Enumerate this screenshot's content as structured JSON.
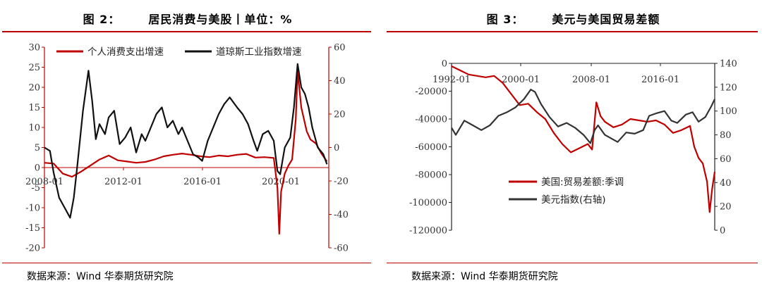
{
  "charts": [
    {
      "figure_label": "图 2：",
      "title": "居民消费与美股丨单位：%",
      "source": "数据来源：Wind 华泰期货研究院"
    },
    {
      "figure_label": "图 3：",
      "title": "美元与美国贸易差额",
      "source": "数据来源：Wind 华泰期货研究院"
    }
  ],
  "colors": {
    "red": "#c00000",
    "black": "#111111",
    "dark": "#333333",
    "rule": "#c00000"
  },
  "chart_data": [
    {
      "type": "line",
      "title": "居民消费与美股丨单位：%",
      "xlabel": "",
      "ylabel": "",
      "x_tick_labels": [
        "2008-01",
        "2012-01",
        "2016-01",
        "2020-01"
      ],
      "xlim": [
        2007.5,
        2023.0
      ],
      "ylim_left": [
        -20,
        30
      ],
      "yticks_left": [
        -20,
        -15,
        -10,
        -5,
        0,
        5,
        10,
        15,
        20,
        25,
        30
      ],
      "ylim_right": [
        -60,
        60
      ],
      "yticks_right": [
        -60,
        -40,
        -20,
        0,
        20,
        40,
        60
      ],
      "legend_position": "top",
      "series": [
        {
          "name": "个人消费支出增速",
          "axis": "left",
          "color": "#c00000",
          "x": [
            2007.5,
            2008.0,
            2008.5,
            2009.0,
            2009.5,
            2010.0,
            2010.5,
            2011.0,
            2011.5,
            2012.0,
            2012.5,
            2013.0,
            2013.5,
            2014.0,
            2014.5,
            2015.0,
            2015.5,
            2016.0,
            2016.5,
            2017.0,
            2017.5,
            2018.0,
            2018.5,
            2019.0,
            2019.5,
            2020.0,
            2020.2,
            2020.3,
            2020.4,
            2020.6,
            2020.8,
            2021.0,
            2021.2,
            2021.3,
            2021.5,
            2021.8,
            2022.0,
            2022.3,
            2022.6,
            2022.9
          ],
          "y": [
            1.2,
            1.0,
            -1.5,
            -2.3,
            -1.0,
            0.5,
            2.0,
            3.0,
            1.8,
            1.5,
            1.2,
            1.4,
            2.0,
            2.8,
            3.2,
            3.5,
            3.2,
            2.8,
            2.6,
            3.0,
            2.8,
            3.2,
            3.4,
            2.5,
            2.6,
            2.4,
            -5,
            -16.5,
            -6,
            -1.5,
            0.5,
            2,
            12,
            24,
            15,
            9,
            7,
            6,
            3.5,
            1.5
          ]
        },
        {
          "name": "道琼斯工业指数增速",
          "axis": "right",
          "color": "#111111",
          "x": [
            2007.5,
            2007.8,
            2008.0,
            2008.3,
            2008.6,
            2008.9,
            2009.1,
            2009.3,
            2009.6,
            2009.9,
            2010.1,
            2010.3,
            2010.5,
            2010.8,
            2011.0,
            2011.3,
            2011.6,
            2011.9,
            2012.2,
            2012.5,
            2012.8,
            2013.0,
            2013.3,
            2013.6,
            2013.9,
            2014.2,
            2014.5,
            2014.8,
            2015.0,
            2015.3,
            2015.6,
            2015.9,
            2016.1,
            2016.4,
            2016.7,
            2017.0,
            2017.3,
            2017.6,
            2018.0,
            2018.3,
            2018.6,
            2018.9,
            2019.1,
            2019.4,
            2019.7,
            2020.0,
            2020.2,
            2020.35,
            2020.6,
            2020.9,
            2021.1,
            2021.3,
            2021.5,
            2021.7,
            2021.9,
            2022.1,
            2022.4,
            2022.7,
            2022.9
          ],
          "y": [
            0,
            -2,
            -15,
            -30,
            -36,
            -42,
            -30,
            -10,
            22,
            46,
            28,
            5,
            14,
            8,
            18,
            22,
            2,
            6,
            12,
            -3,
            8,
            4,
            12,
            20,
            24,
            12,
            16,
            8,
            12,
            4,
            -4,
            -6,
            -8,
            4,
            12,
            20,
            26,
            30,
            24,
            20,
            14,
            4,
            -2,
            8,
            10,
            4,
            -14,
            -16,
            0,
            6,
            24,
            50,
            36,
            32,
            24,
            12,
            0,
            -4,
            -10
          ]
        }
      ]
    },
    {
      "type": "line",
      "title": "美元与美国贸易差额",
      "xlabel": "",
      "ylabel": "",
      "x_tick_labels": [
        "1992-01",
        "2000-01",
        "2008-01",
        "2016-01"
      ],
      "xlim": [
        1992.0,
        2022.9
      ],
      "ylim_left": [
        -120000,
        0
      ],
      "yticks_left": [
        -120000,
        -100000,
        -80000,
        -60000,
        -40000,
        -20000,
        0
      ],
      "ylim_right": [
        0,
        140
      ],
      "yticks_right": [
        0,
        20,
        40,
        60,
        80,
        100,
        120,
        140
      ],
      "legend_position": "lower-center",
      "series": [
        {
          "name": "美国:贸易差额:季调",
          "axis": "left",
          "color": "#c00000",
          "x": [
            1992.0,
            1993.0,
            1994.0,
            1995.0,
            1996.0,
            1997.0,
            1998.0,
            1999.0,
            2000.0,
            2001.0,
            2002.0,
            2003.0,
            2004.0,
            2005.0,
            2006.0,
            2007.0,
            2008.0,
            2008.5,
            2009.0,
            2009.5,
            2010.0,
            2011.0,
            2012.0,
            2013.0,
            2014.0,
            2015.0,
            2016.0,
            2017.0,
            2018.0,
            2019.0,
            2020.0,
            2020.5,
            2021.0,
            2021.5,
            2022.0,
            2022.3,
            2022.6,
            2022.9
          ],
          "y": [
            -2000,
            -5000,
            -8000,
            -9000,
            -10000,
            -9000,
            -14000,
            -22000,
            -30000,
            -29000,
            -35000,
            -40000,
            -50000,
            -58000,
            -64000,
            -61000,
            -58000,
            -62000,
            -28000,
            -38000,
            -42000,
            -46000,
            -44000,
            -40000,
            -41000,
            -42000,
            -41000,
            -44000,
            -50000,
            -48000,
            -45000,
            -60000,
            -68000,
            -72000,
            -85000,
            -107000,
            -90000,
            -78000
          ]
        },
        {
          "name": "美元指数(右轴)",
          "axis": "right",
          "color": "#333333",
          "x": [
            1992.0,
            1992.5,
            1993.5,
            1994.5,
            1995.5,
            1996.5,
            1997.5,
            1998.5,
            1999.5,
            2000.5,
            2001.3,
            2001.8,
            2002.5,
            2003.5,
            2004.5,
            2005.5,
            2006.5,
            2007.5,
            2008.3,
            2008.8,
            2009.2,
            2010.0,
            2011.0,
            2011.5,
            2012.5,
            2013.5,
            2014.5,
            2015.2,
            2016.0,
            2017.0,
            2017.8,
            2018.5,
            2019.5,
            2020.3,
            2021.0,
            2021.8,
            2022.5,
            2022.9
          ],
          "y": [
            86,
            80,
            92,
            88,
            84,
            88,
            96,
            99,
            103,
            110,
            118,
            116,
            106,
            95,
            87,
            90,
            86,
            80,
            73,
            84,
            88,
            80,
            76,
            74,
            82,
            81,
            84,
            96,
            98,
            100,
            92,
            90,
            97,
            99,
            91,
            95,
            104,
            110
          ]
        }
      ]
    }
  ]
}
